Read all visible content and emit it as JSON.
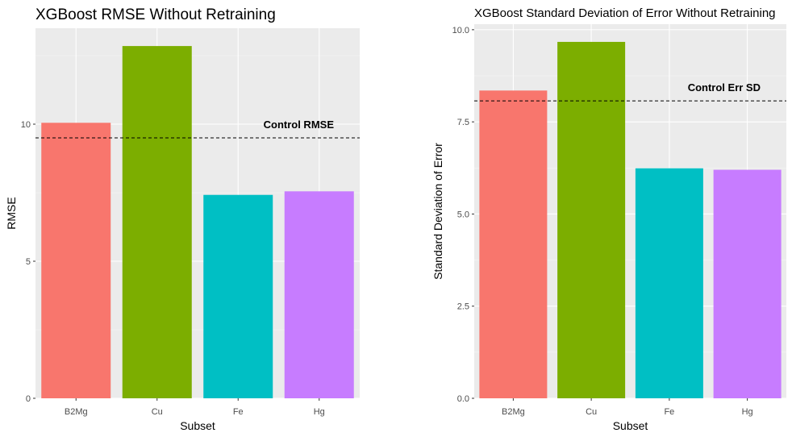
{
  "chart_data": [
    {
      "type": "bar",
      "title": "XGBoost RMSE Without Retraining",
      "xlabel": "Subset",
      "ylabel": "RMSE",
      "categories": [
        "B2Mg",
        "Cu",
        "Fe",
        "Hg"
      ],
      "values": [
        10.05,
        12.85,
        7.42,
        7.55
      ],
      "colors": [
        "#F8766D",
        "#7CAE00",
        "#00BFC4",
        "#C77CFF"
      ],
      "yticks": [
        0,
        5,
        10
      ],
      "ytick_labels": [
        "0",
        "5",
        "10"
      ],
      "ylim": [
        0,
        13.5
      ],
      "grid": true,
      "reference_line": {
        "label": "Control RMSE",
        "value": 9.5,
        "style": "dashed"
      }
    },
    {
      "type": "bar",
      "title": "XGBoost Standard Deviation of Error Without Retraining",
      "xlabel": "Subset",
      "ylabel": "Standard Deviation of Error",
      "categories": [
        "B2Mg",
        "Cu",
        "Fe",
        "Hg"
      ],
      "values": [
        8.35,
        9.67,
        6.24,
        6.2
      ],
      "colors": [
        "#F8766D",
        "#7CAE00",
        "#00BFC4",
        "#C77CFF"
      ],
      "yticks": [
        0,
        2.5,
        5,
        7.5,
        10
      ],
      "ytick_labels": [
        "0.0",
        "2.5",
        "5.0",
        "7.5",
        "10.0"
      ],
      "ylim": [
        0,
        10.15
      ],
      "grid": true,
      "reference_line": {
        "label": "Control Err SD",
        "value": 8.07,
        "style": "dashed"
      }
    }
  ]
}
